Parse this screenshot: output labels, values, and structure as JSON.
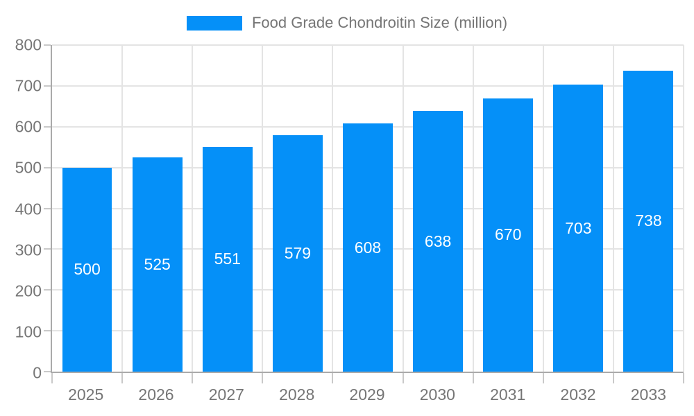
{
  "chart_data": {
    "type": "bar",
    "title": "Food Grade Chondroitin Size (million)",
    "categories": [
      "2025",
      "2026",
      "2027",
      "2028",
      "2029",
      "2030",
      "2031",
      "2032",
      "2033"
    ],
    "values": [
      500,
      525,
      551,
      579,
      608,
      638,
      670,
      703,
      738
    ],
    "xlabel": "",
    "ylabel": "",
    "ylim": [
      0,
      800
    ],
    "yticks": [
      0,
      100,
      200,
      300,
      400,
      500,
      600,
      700,
      800
    ],
    "grid": true,
    "legend_position": "top-center",
    "value_label_position": "inside-middle"
  },
  "colors": {
    "bar": "#0590f8",
    "grid": "#e4e4e4",
    "axis": "#aaaaaa",
    "tick": "#c9c9c9",
    "text": "#757575",
    "value_label": "#ffffff",
    "background": "#ffffff"
  }
}
